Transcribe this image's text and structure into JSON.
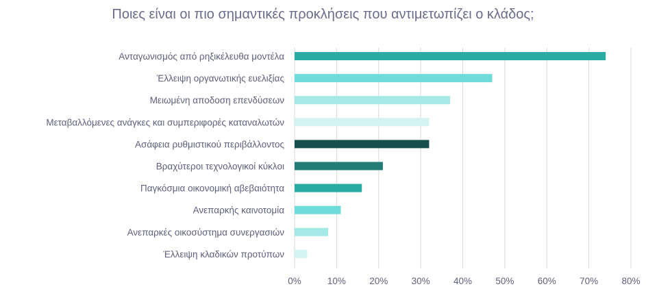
{
  "chart_data": {
    "type": "bar",
    "orientation": "horizontal",
    "title": "Ποιες είναι οι πιο σημαντικές προκλήσεις που αντιμετωπίζει ο κλάδος;",
    "categories": [
      "Ανταγωνισμός από ρηξικέλευθα μοντέλα",
      "Έλλειψη οργανωτικής ευελιξίας",
      "Μειωμένη αποδοση επενδύσεων",
      "Μεταβαλλόμενες ανάγκες και συμπεριφορές καταναλωτών",
      "Ασάφεια ρυθμιστικού περιβάλλοντος",
      "Βραχύτεροι τεχνολογικοί κύκλοι",
      "Παγκόσμια οικονομική αβεβαιότητα",
      "Ανεπαρκής καινοτομία",
      "Ανεπαρκές οικοσύστημα συνεργασιών",
      "Έλλειψη κλαδικών προτύπων"
    ],
    "values": [
      74,
      47,
      37,
      32,
      32,
      21,
      16,
      11,
      8,
      3
    ],
    "colors": [
      "#2aaca3",
      "#6fdcdc",
      "#a5e8e6",
      "#d3f3f2",
      "#164f4e",
      "#227d78",
      "#2aaca3",
      "#6fdcdc",
      "#a5e8e6",
      "#d3f3f2"
    ],
    "xlim": [
      0,
      80
    ],
    "ticks": [
      "0%",
      "10%",
      "20%",
      "30%",
      "40%",
      "50%",
      "60%",
      "70%",
      "80%"
    ],
    "grid": true,
    "legend": "none"
  }
}
